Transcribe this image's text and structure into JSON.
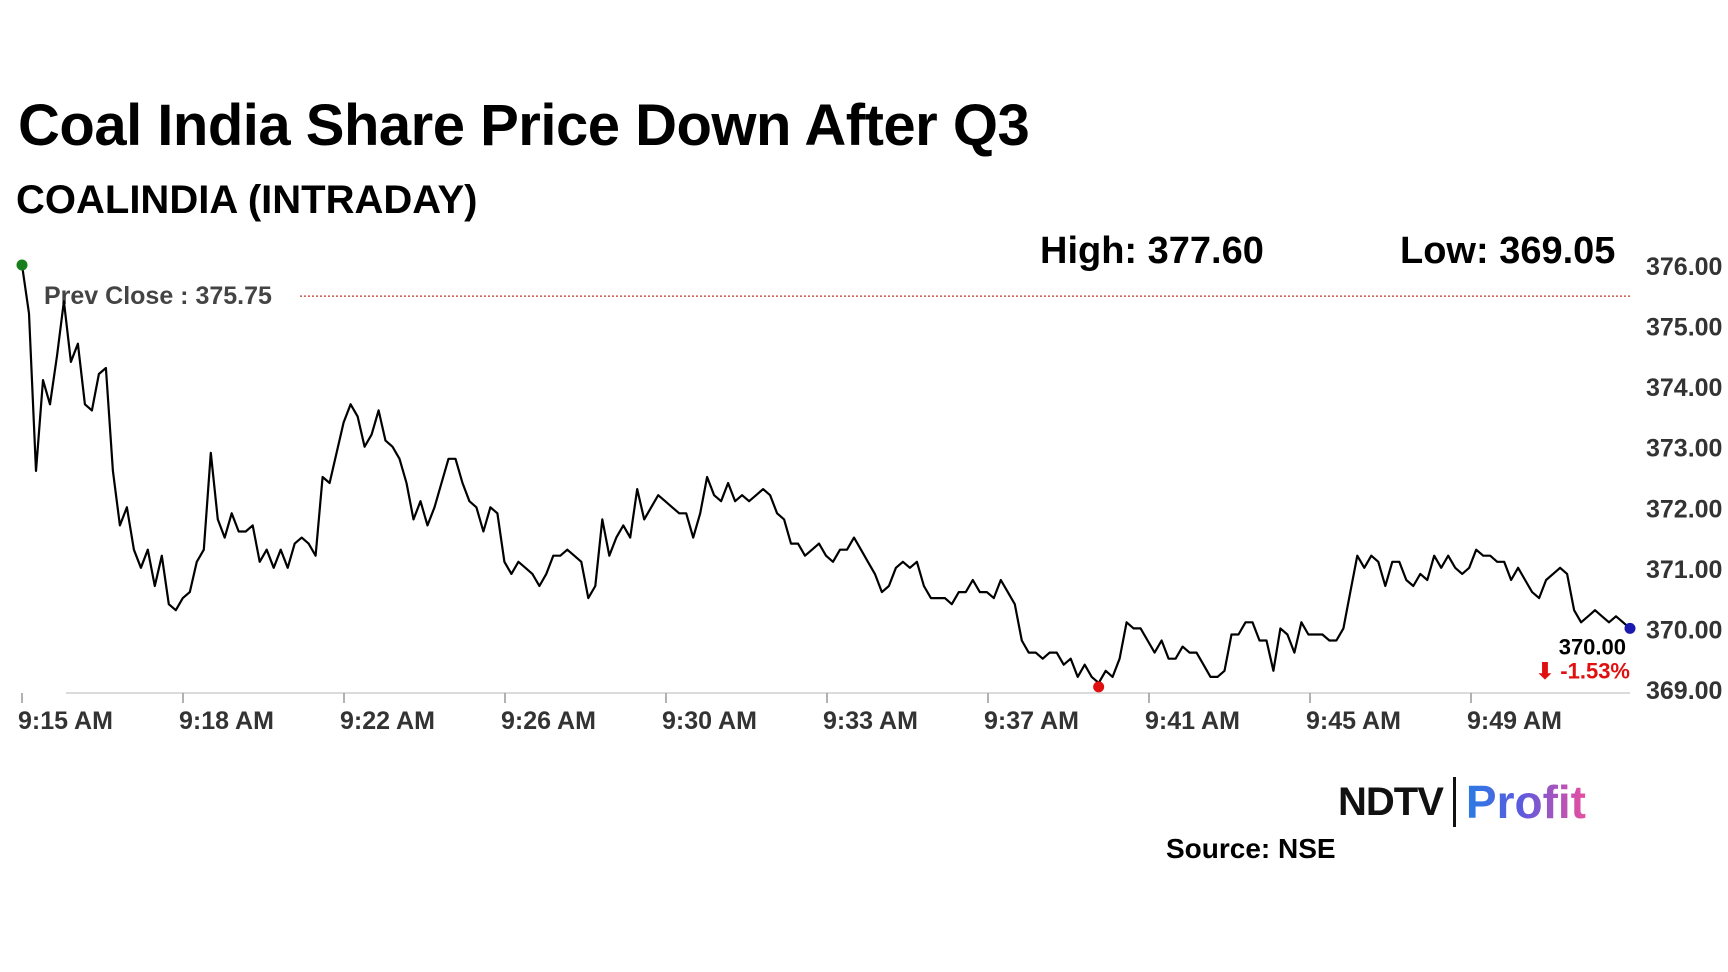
{
  "header": {
    "title": "Coal India Share Price Down After Q3",
    "subtitle": "COALINDIA (INTRADAY)"
  },
  "stats": {
    "high": "High: 377.60",
    "low": "Low: 369.05"
  },
  "footer": {
    "brand_main": "NDTV",
    "brand_accent": "Profit",
    "source": "Source: NSE"
  },
  "colors": {
    "line": "#000000",
    "start_marker": "#1a7f1a",
    "low_marker": "#e01010",
    "end_marker": "#1a1ab0",
    "prev_close_line": "#c0392b",
    "negative": "#e01010",
    "axis_text": "#333333"
  },
  "chart_data": {
    "type": "line",
    "title": "COALINDIA (INTRADAY)",
    "xlabel": "",
    "ylabel": "",
    "ylim": [
      368.95,
      376.0
    ],
    "x_ticks": [
      "9:15 AM",
      "9:18 AM",
      "9:22 AM",
      "9:26 AM",
      "9:30 AM",
      "9:33 AM",
      "9:37 AM",
      "9:41 AM",
      "9:45 AM",
      "9:49 AM"
    ],
    "y_ticks": [
      "376.00",
      "375.00",
      "374.00",
      "373.00",
      "372.00",
      "371.00",
      "370.00",
      "369.00"
    ],
    "y_tick_values": [
      376,
      375,
      374,
      373,
      372,
      371,
      370,
      369
    ],
    "prev_close_label": "Prev Close : 375.75",
    "prev_close_value": 375.75,
    "last_value_label": "370.00",
    "change_label": "⬇ -1.53%",
    "series": [
      {
        "name": "COALINDIA",
        "values": [
          376.0,
          375.2,
          372.6,
          374.1,
          373.7,
          374.5,
          375.4,
          374.4,
          374.7,
          373.7,
          373.6,
          374.2,
          374.3,
          372.6,
          371.7,
          372.0,
          371.3,
          371.0,
          371.3,
          370.7,
          371.2,
          370.4,
          370.3,
          370.5,
          370.6,
          371.1,
          371.3,
          372.9,
          371.8,
          371.5,
          371.9,
          371.6,
          371.6,
          371.7,
          371.1,
          371.3,
          371.0,
          371.3,
          371.0,
          371.4,
          371.5,
          371.4,
          371.2,
          372.5,
          372.4,
          372.9,
          373.4,
          373.7,
          373.5,
          373.0,
          373.2,
          373.6,
          373.1,
          373.0,
          372.8,
          372.4,
          371.8,
          372.1,
          371.7,
          372.0,
          372.4,
          372.8,
          372.8,
          372.4,
          372.1,
          372.0,
          371.6,
          372.0,
          371.9,
          371.1,
          370.9,
          371.1,
          371.0,
          370.9,
          370.7,
          370.9,
          371.2,
          371.2,
          371.3,
          371.2,
          371.1,
          370.5,
          370.7,
          371.8,
          371.2,
          371.5,
          371.7,
          371.5,
          372.3,
          371.8,
          372.0,
          372.2,
          372.1,
          372.0,
          371.9,
          371.9,
          371.5,
          371.9,
          372.5,
          372.2,
          372.1,
          372.4,
          372.1,
          372.2,
          372.1,
          372.2,
          372.3,
          372.2,
          371.9,
          371.8,
          371.4,
          371.4,
          371.2,
          371.3,
          371.4,
          371.2,
          371.1,
          371.3,
          371.3,
          371.5,
          371.3,
          371.1,
          370.9,
          370.6,
          370.7,
          371.0,
          371.1,
          371.0,
          371.1,
          370.7,
          370.5,
          370.5,
          370.5,
          370.4,
          370.6,
          370.6,
          370.8,
          370.6,
          370.6,
          370.5,
          370.8,
          370.6,
          370.4,
          369.8,
          369.6,
          369.6,
          369.5,
          369.6,
          369.6,
          369.4,
          369.5,
          369.2,
          369.4,
          369.2,
          369.1,
          369.3,
          369.2,
          369.5,
          370.1,
          370.0,
          370.0,
          369.8,
          369.6,
          369.8,
          369.5,
          369.5,
          369.7,
          369.6,
          369.6,
          369.4,
          369.2,
          369.2,
          369.3,
          369.9,
          369.9,
          370.1,
          370.1,
          369.8,
          369.8,
          369.3,
          370.0,
          369.9,
          369.6,
          370.1,
          369.9,
          369.9,
          369.9,
          369.8,
          369.8,
          370.0,
          370.6,
          371.2,
          371.0,
          371.2,
          371.1,
          370.7,
          371.1,
          371.1,
          370.8,
          370.7,
          370.9,
          370.8,
          371.2,
          371.0,
          371.2,
          371.0,
          370.9,
          371.0,
          371.3,
          371.2,
          371.2,
          371.1,
          371.1,
          370.8,
          371.0,
          370.8,
          370.6,
          370.5,
          370.8,
          370.9,
          371.0,
          370.9,
          370.3,
          370.1,
          370.2,
          370.3,
          370.2,
          370.1,
          370.2,
          370.1,
          370.0
        ]
      }
    ]
  }
}
